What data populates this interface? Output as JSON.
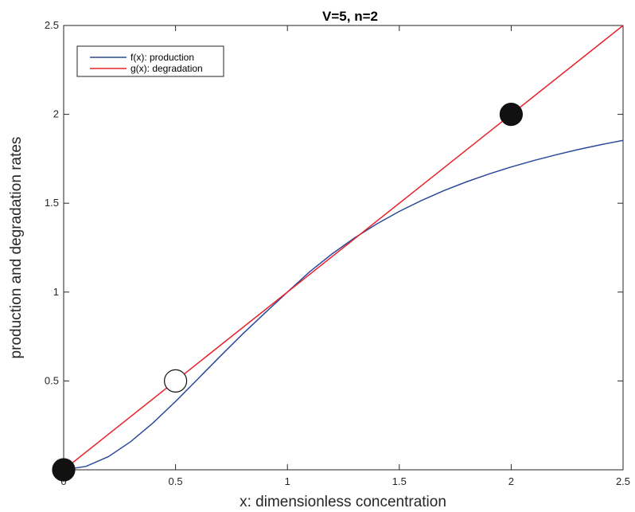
{
  "chart_data": {
    "type": "line",
    "title": "V=5, n=2",
    "xlabel": "x: dimensionless concentration",
    "ylabel": "production and degradation rates",
    "xlim": [
      0,
      2.5
    ],
    "ylim": [
      0,
      2.5
    ],
    "xticks": [
      "0",
      "0.5",
      "1",
      "1.5",
      "2",
      "2.5"
    ],
    "yticks": [
      "0",
      "0.5",
      "1",
      "1.5",
      "2",
      "2.5"
    ],
    "grid": false,
    "legend_position": "top-left",
    "series": [
      {
        "name": "f(x): production",
        "color": "#2b4a9b",
        "x": [
          0,
          0.1,
          0.2,
          0.3,
          0.4,
          0.5,
          0.6,
          0.7,
          0.8,
          0.9,
          1.0,
          1.1,
          1.2,
          1.3,
          1.4,
          1.5,
          1.6,
          1.7,
          1.8,
          1.9,
          2.0,
          2.1,
          2.2,
          2.3,
          2.4,
          2.5
        ],
        "y": [
          0,
          0.0192,
          0.0741,
          0.1587,
          0.2647,
          0.3846,
          0.5114,
          0.6393,
          0.7641,
          0.8827,
          1.0,
          1.1148,
          1.2152,
          1.3047,
          1.3839,
          1.4539,
          1.5159,
          1.571,
          1.6201,
          1.6642,
          1.7039,
          1.7398,
          1.7723,
          1.802,
          1.829,
          1.8539
        ]
      },
      {
        "name": "g(x): degradation",
        "color": "#e8202a",
        "x": [
          0,
          2.5
        ],
        "y": [
          0,
          2.5
        ]
      }
    ],
    "markers": [
      {
        "x": 0,
        "y": 0,
        "fill": "#111111"
      },
      {
        "x": 0.5,
        "y": 0.5,
        "fill": "#ffffff"
      },
      {
        "x": 2,
        "y": 2,
        "fill": "#111111"
      }
    ]
  }
}
